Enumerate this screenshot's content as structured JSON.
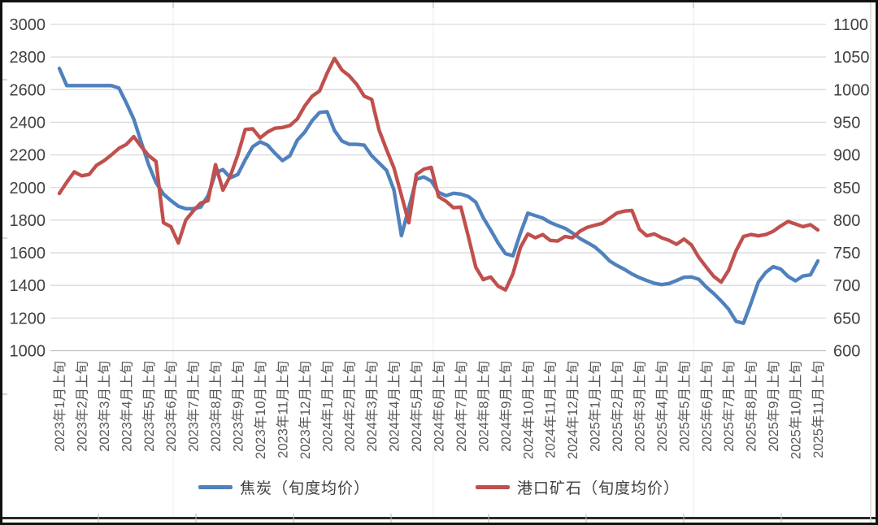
{
  "chart_data": {
    "type": "line",
    "title": "",
    "legend_position": "bottom",
    "grid": "horizontal",
    "colors": {
      "coke_blue": "#4F81BD",
      "ore_red": "#C0504D",
      "gridline": "#D9D9D9",
      "axis_line": "#BFBFBF",
      "tick_text": "#404040",
      "artifact_gray": "#C9C9C9"
    },
    "axes": {
      "left": {
        "min": 1000,
        "max": 3000,
        "step": 200,
        "ticks": [
          "3000",
          "2800",
          "2600",
          "2400",
          "2200",
          "2000",
          "1800",
          "1600",
          "1400",
          "1200",
          "1000"
        ]
      },
      "right": {
        "min": 600,
        "max": 1100,
        "step": 50,
        "ticks": [
          "1100",
          "1050",
          "1000",
          "950",
          "900",
          "850",
          "800",
          "750",
          "700",
          "650",
          "600"
        ]
      }
    },
    "x_label_every_n_points": 3,
    "x_labels": [
      "2023年1月上旬",
      "2023年2月上旬",
      "2023年3月上旬",
      "2023年4月上旬",
      "2023年5月上旬",
      "2023年6月上旬",
      "2023年7月上旬",
      "2023年8月上旬",
      "2023年9月上旬",
      "2023年10月上旬",
      "2023年11月上旬",
      "2023年12月上旬",
      "2024年1月上旬",
      "2024年2月上旬",
      "2024年3月上旬",
      "2024年4月上旬",
      "2024年5月上旬",
      "2024年6月上旬",
      "2024年7月上旬",
      "2024年8月上旬",
      "2024年9月上旬",
      "2024年10月上旬",
      "2024年11月上旬",
      "2024年12月上旬",
      "2025年1月上旬",
      "2025年2月上旬",
      "2025年3月上旬",
      "2025年4月上旬",
      "2025年5月上旬",
      "2025年6月上旬",
      "2025年7月上旬",
      "2025年8月上旬",
      "2025年9月上旬",
      "2025年10月上旬",
      "2025年11月上旬"
    ],
    "series": [
      {
        "name": "焦炭（旬度均价）",
        "axis": "left",
        "color": "#4F81BD",
        "values": [
          2730,
          2625,
          2625,
          2625,
          2625,
          2625,
          2625,
          2625,
          2610,
          2520,
          2420,
          2280,
          2140,
          2030,
          1960,
          1920,
          1885,
          1870,
          1870,
          1880,
          1950,
          2090,
          2110,
          2060,
          2080,
          2170,
          2250,
          2280,
          2260,
          2210,
          2165,
          2195,
          2290,
          2340,
          2410,
          2460,
          2465,
          2350,
          2285,
          2265,
          2265,
          2260,
          2195,
          2150,
          2105,
          1985,
          1705,
          1875,
          2050,
          2065,
          2040,
          1970,
          1950,
          1965,
          1960,
          1945,
          1910,
          1815,
          1740,
          1660,
          1595,
          1582,
          1720,
          1843,
          1828,
          1813,
          1786,
          1767,
          1750,
          1722,
          1688,
          1663,
          1636,
          1597,
          1550,
          1522,
          1498,
          1470,
          1448,
          1430,
          1413,
          1405,
          1412,
          1430,
          1450,
          1452,
          1438,
          1390,
          1350,
          1305,
          1255,
          1180,
          1168,
          1290,
          1420,
          1480,
          1515,
          1500,
          1455,
          1428,
          1458,
          1465,
          1550
        ]
      },
      {
        "name": "港口矿石（旬度均价）",
        "axis": "right",
        "color": "#C0504D",
        "values": [
          841,
          858,
          874,
          868,
          870,
          884,
          891,
          900,
          910,
          916,
          928,
          913,
          899,
          890,
          796,
          790,
          765,
          800,
          814,
          826,
          830,
          885,
          846,
          868,
          900,
          939,
          940,
          926,
          935,
          941,
          942,
          945,
          955,
          975,
          990,
          998,
          1025,
          1048,
          1030,
          1021,
          1008,
          990,
          985,
          938,
          908,
          880,
          838,
          796,
          870,
          878,
          881,
          836,
          829,
          819,
          820,
          775,
          728,
          709,
          713,
          699,
          693,
          718,
          758,
          779,
          773,
          778,
          769,
          768,
          775,
          773,
          783,
          789,
          792,
          795,
          803,
          811,
          814,
          815,
          786,
          776,
          779,
          773,
          769,
          763,
          771,
          762,
          743,
          728,
          714,
          705,
          723,
          753,
          775,
          778,
          776,
          778,
          783,
          791,
          798,
          794,
          790,
          793,
          785
        ]
      }
    ]
  },
  "legend": {
    "items": [
      {
        "label": "焦炭（旬度均价）"
      },
      {
        "label": "港口矿石（旬度均价）"
      }
    ]
  }
}
